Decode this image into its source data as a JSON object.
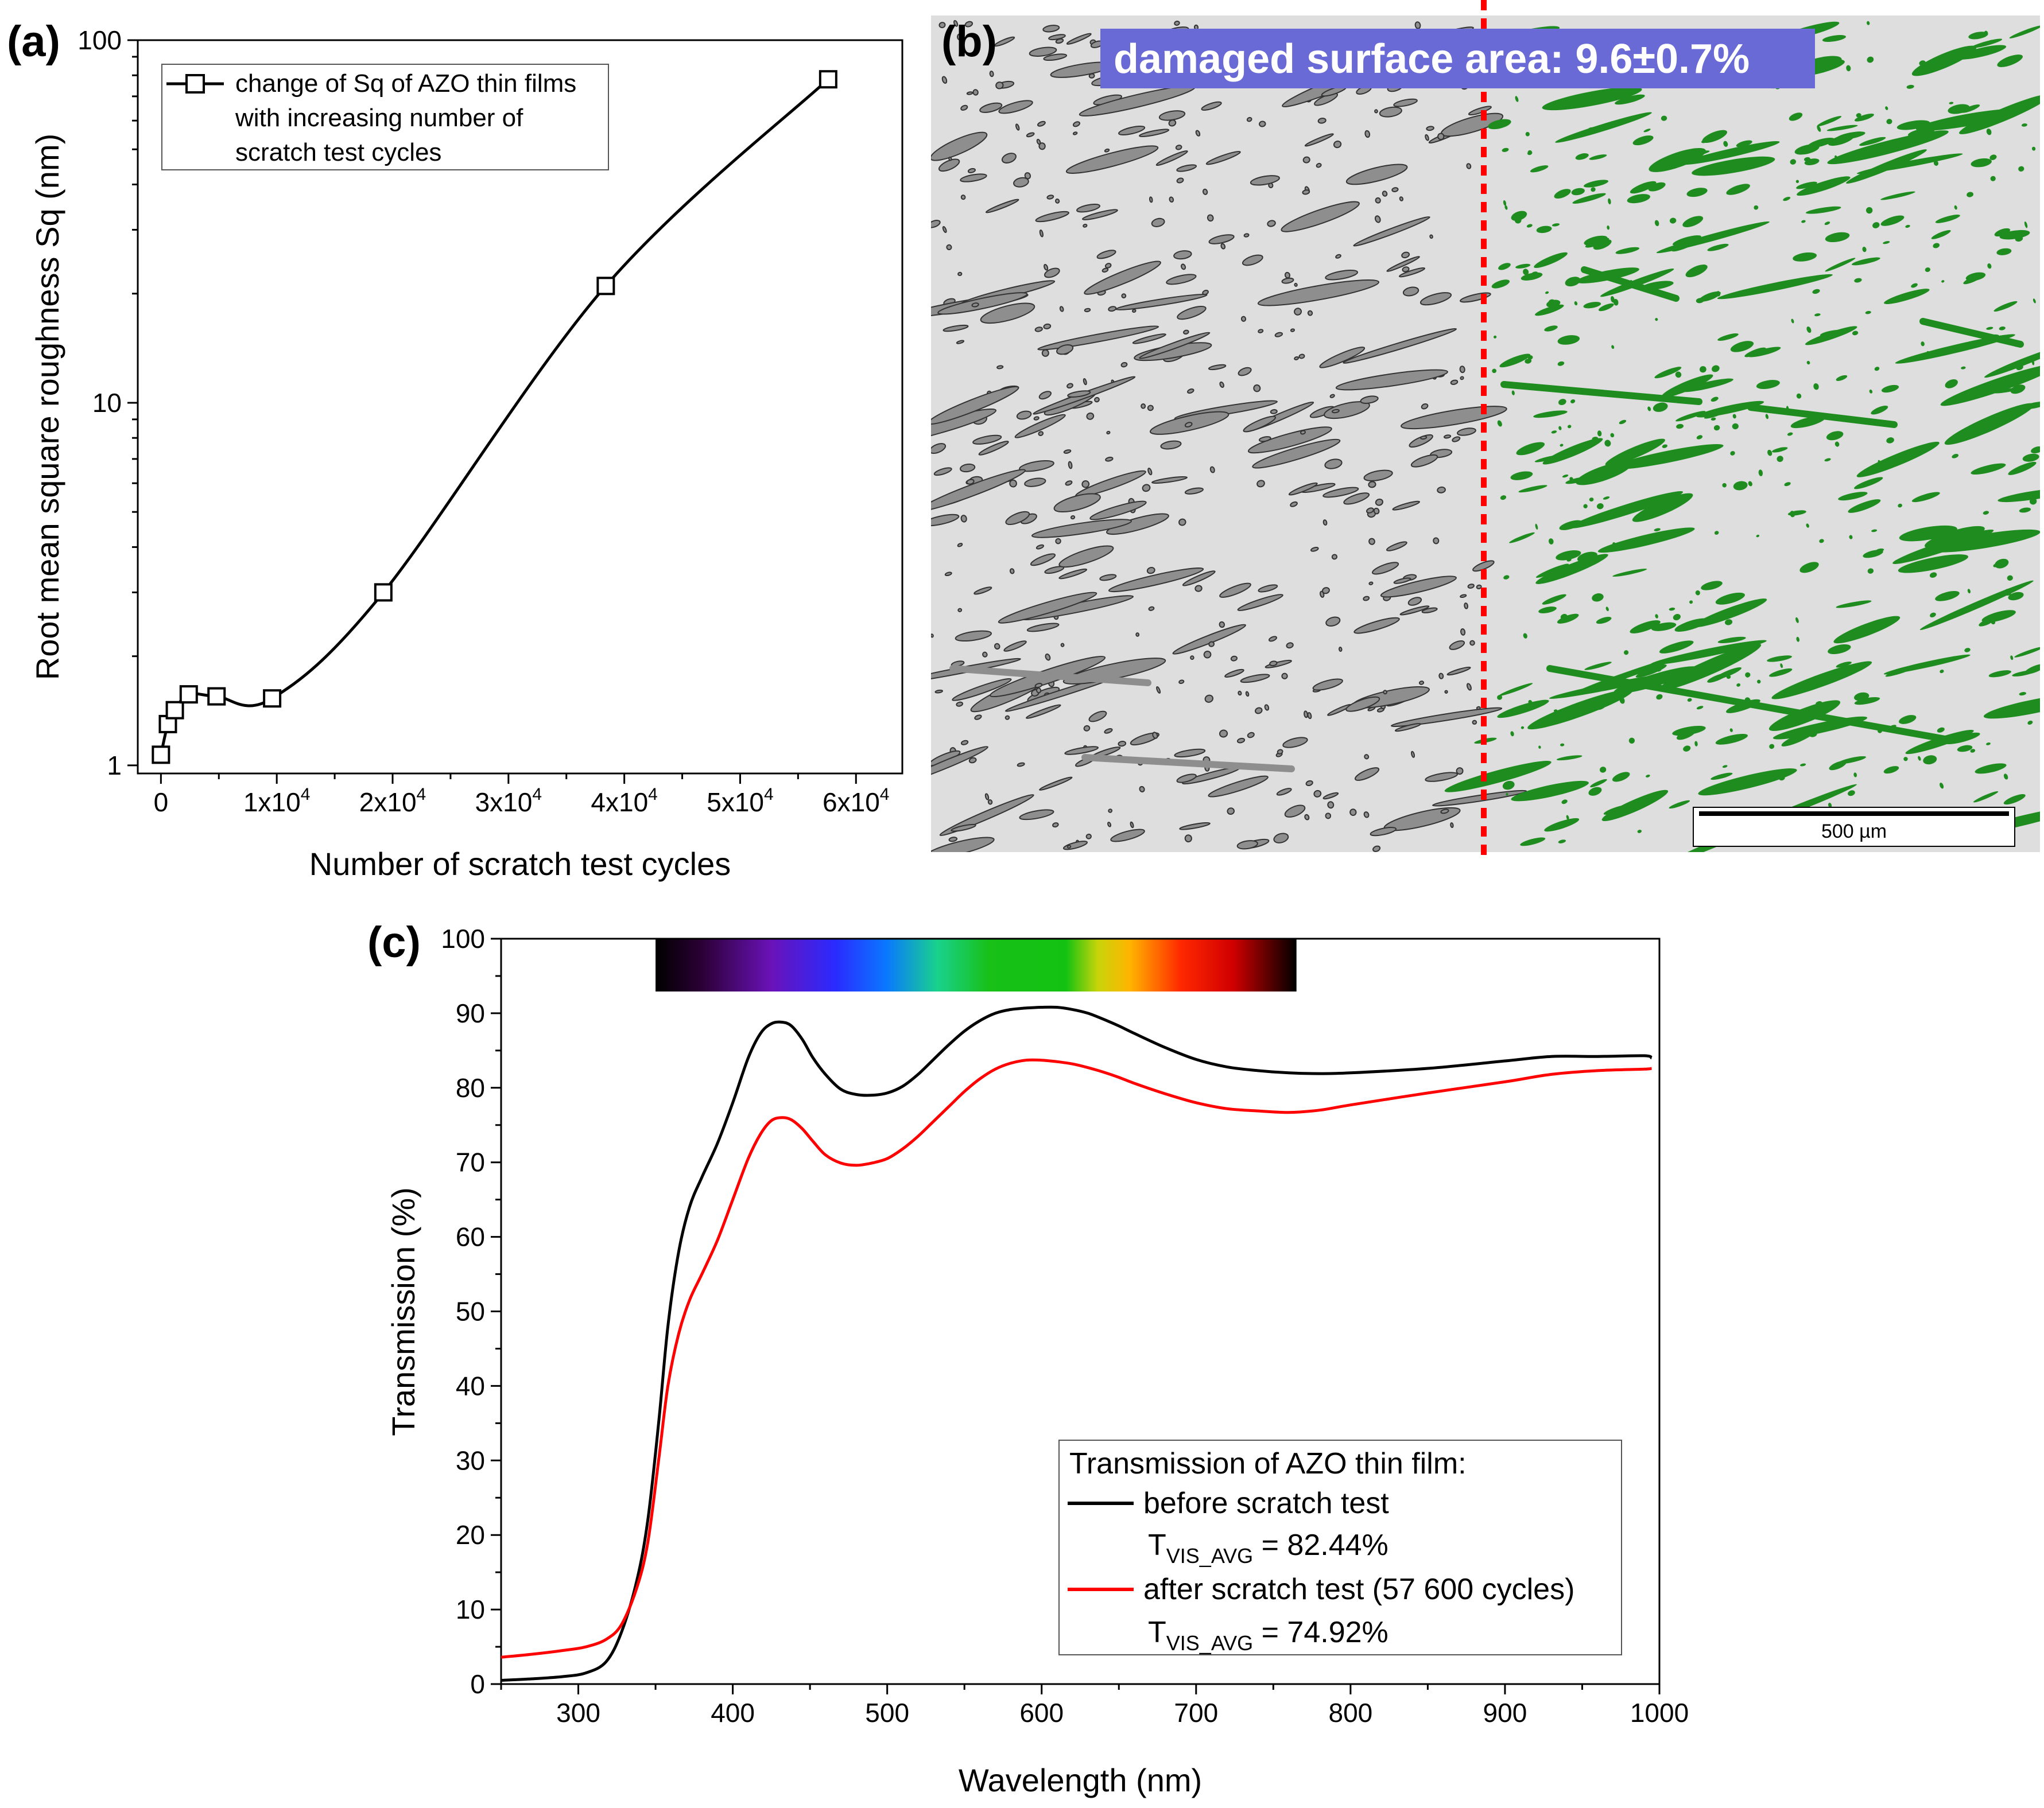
{
  "figure": {
    "panel_a_label": "(a)",
    "panel_b_label": "(b)",
    "panel_c_label": "(c)"
  },
  "chart_data": [
    {
      "type": "line",
      "id": "a",
      "title": "",
      "xlabel": "Number of scratch test cycles",
      "ylabel": "Root mean square roughness Sq (nm)",
      "yscale": "log",
      "xlim": [
        -2000,
        64000
      ],
      "ylim": [
        0.95,
        100
      ],
      "x_ticks": [
        {
          "value": 0,
          "base": "0",
          "exp": ""
        },
        {
          "value": 10000,
          "base": "1x10",
          "exp": "4"
        },
        {
          "value": 20000,
          "base": "2x10",
          "exp": "4"
        },
        {
          "value": 30000,
          "base": "3x10",
          "exp": "4"
        },
        {
          "value": 40000,
          "base": "4x10",
          "exp": "4"
        },
        {
          "value": 50000,
          "base": "5x10",
          "exp": "4"
        },
        {
          "value": 60000,
          "base": "6x10",
          "exp": "4"
        }
      ],
      "y_ticks": [
        {
          "value": 1,
          "label": "1"
        },
        {
          "value": 10,
          "label": "10"
        },
        {
          "value": 100,
          "label": "100"
        }
      ],
      "series": [
        {
          "name": "change of Sq of AZO thin films with increasing number of scratch test cycles",
          "x": [
            0,
            600,
            1200,
            2400,
            4800,
            9600,
            19200,
            38400,
            57600
          ],
          "y": [
            1.07,
            1.3,
            1.42,
            1.57,
            1.55,
            1.53,
            3.0,
            21.0,
            78.0
          ],
          "color": "#000000",
          "marker": "square"
        }
      ],
      "legend": {
        "position": "top-left",
        "lines": [
          "change of Sq of AZO thin films",
          "with increasing number of",
          "scratch test cycles"
        ]
      }
    },
    {
      "type": "line",
      "id": "c",
      "title": "",
      "xlabel": "Wavelength (nm)",
      "ylabel": "Transmission (%)",
      "xlim": [
        250,
        1000
      ],
      "ylim": [
        0,
        100
      ],
      "x_ticks": [
        300,
        400,
        500,
        600,
        700,
        800,
        900,
        1000
      ],
      "y_ticks": [
        0,
        10,
        20,
        30,
        40,
        50,
        60,
        70,
        80,
        90,
        100
      ],
      "spectrum_bar": {
        "from": 350,
        "to": 765
      },
      "series": [
        {
          "name": "before scratch test",
          "color": "#000000",
          "x": [
            250,
            270,
            290,
            305,
            318,
            328,
            338,
            345,
            352,
            358,
            365,
            372,
            380,
            390,
            400,
            410,
            418,
            425,
            432,
            438,
            445,
            452,
            460,
            470,
            480,
            490,
            500,
            510,
            520,
            530,
            540,
            550,
            560,
            570,
            580,
            590,
            600,
            610,
            620,
            630,
            640,
            650,
            660,
            680,
            700,
            720,
            740,
            760,
            780,
            800,
            850,
            900,
            930,
            960,
            990,
            995
          ],
          "y": [
            0.5,
            0.7,
            1.0,
            1.5,
            3.0,
            7.0,
            14.0,
            22.0,
            35.0,
            48.0,
            58.0,
            64.0,
            68.0,
            72.5,
            78.0,
            84.0,
            87.3,
            88.6,
            88.8,
            88.3,
            86.5,
            84.0,
            81.8,
            79.8,
            79.1,
            79.0,
            79.3,
            80.2,
            81.8,
            83.8,
            85.8,
            87.6,
            89.0,
            90.0,
            90.5,
            90.7,
            90.8,
            90.8,
            90.5,
            90.0,
            89.2,
            88.3,
            87.3,
            85.4,
            83.8,
            82.8,
            82.3,
            82.0,
            81.9,
            82.0,
            82.6,
            83.6,
            84.2,
            84.2,
            84.3,
            84.0
          ]
        },
        {
          "name": "after scratch test (57 600 cycles)",
          "color": "#ff0000",
          "x": [
            250,
            270,
            290,
            305,
            318,
            328,
            338,
            345,
            352,
            358,
            365,
            372,
            380,
            390,
            400,
            410,
            418,
            425,
            432,
            438,
            445,
            452,
            460,
            470,
            480,
            490,
            500,
            510,
            520,
            530,
            540,
            550,
            560,
            570,
            580,
            590,
            600,
            610,
            620,
            630,
            640,
            650,
            660,
            680,
            700,
            720,
            740,
            760,
            780,
            800,
            850,
            900,
            930,
            960,
            990,
            995
          ],
          "y": [
            3.6,
            4.0,
            4.5,
            5.0,
            6.0,
            8.0,
            13.0,
            19.0,
            30.0,
            40.0,
            47.0,
            51.5,
            55.0,
            59.5,
            65.0,
            70.5,
            73.8,
            75.6,
            76.0,
            75.7,
            74.5,
            72.8,
            71.0,
            69.9,
            69.6,
            69.9,
            70.5,
            71.8,
            73.5,
            75.5,
            77.5,
            79.5,
            81.2,
            82.5,
            83.3,
            83.7,
            83.7,
            83.5,
            83.2,
            82.7,
            82.1,
            81.4,
            80.6,
            79.2,
            78.0,
            77.2,
            76.9,
            76.7,
            77.0,
            77.7,
            79.3,
            80.8,
            81.8,
            82.3,
            82.5,
            82.6
          ]
        }
      ],
      "legend": {
        "position": "bottom-right",
        "title": "Transmission of AZO thin film:",
        "entries": [
          {
            "label": "before scratch test",
            "avg_prefix": "T",
            "avg_sub": "VIS_AVG",
            "avg_value": " = 82.44%",
            "color": "#000000"
          },
          {
            "label": "after scratch test (57 600 cycles)",
            "avg_prefix": "T",
            "avg_sub": "VIS_AVG",
            "avg_value": " = 74.92%",
            "color": "#ff0000"
          }
        ]
      }
    }
  ],
  "micrograph": {
    "banner": "damaged surface area: 9.6±0.7%",
    "scale_bar": "500 µm",
    "colors": {
      "background": "#dedede",
      "damage_dark": "#8e8e8e",
      "damage_green": "#1e8c1e",
      "divider": "#ff0000",
      "banner_bg": "#6a6ad6"
    }
  }
}
